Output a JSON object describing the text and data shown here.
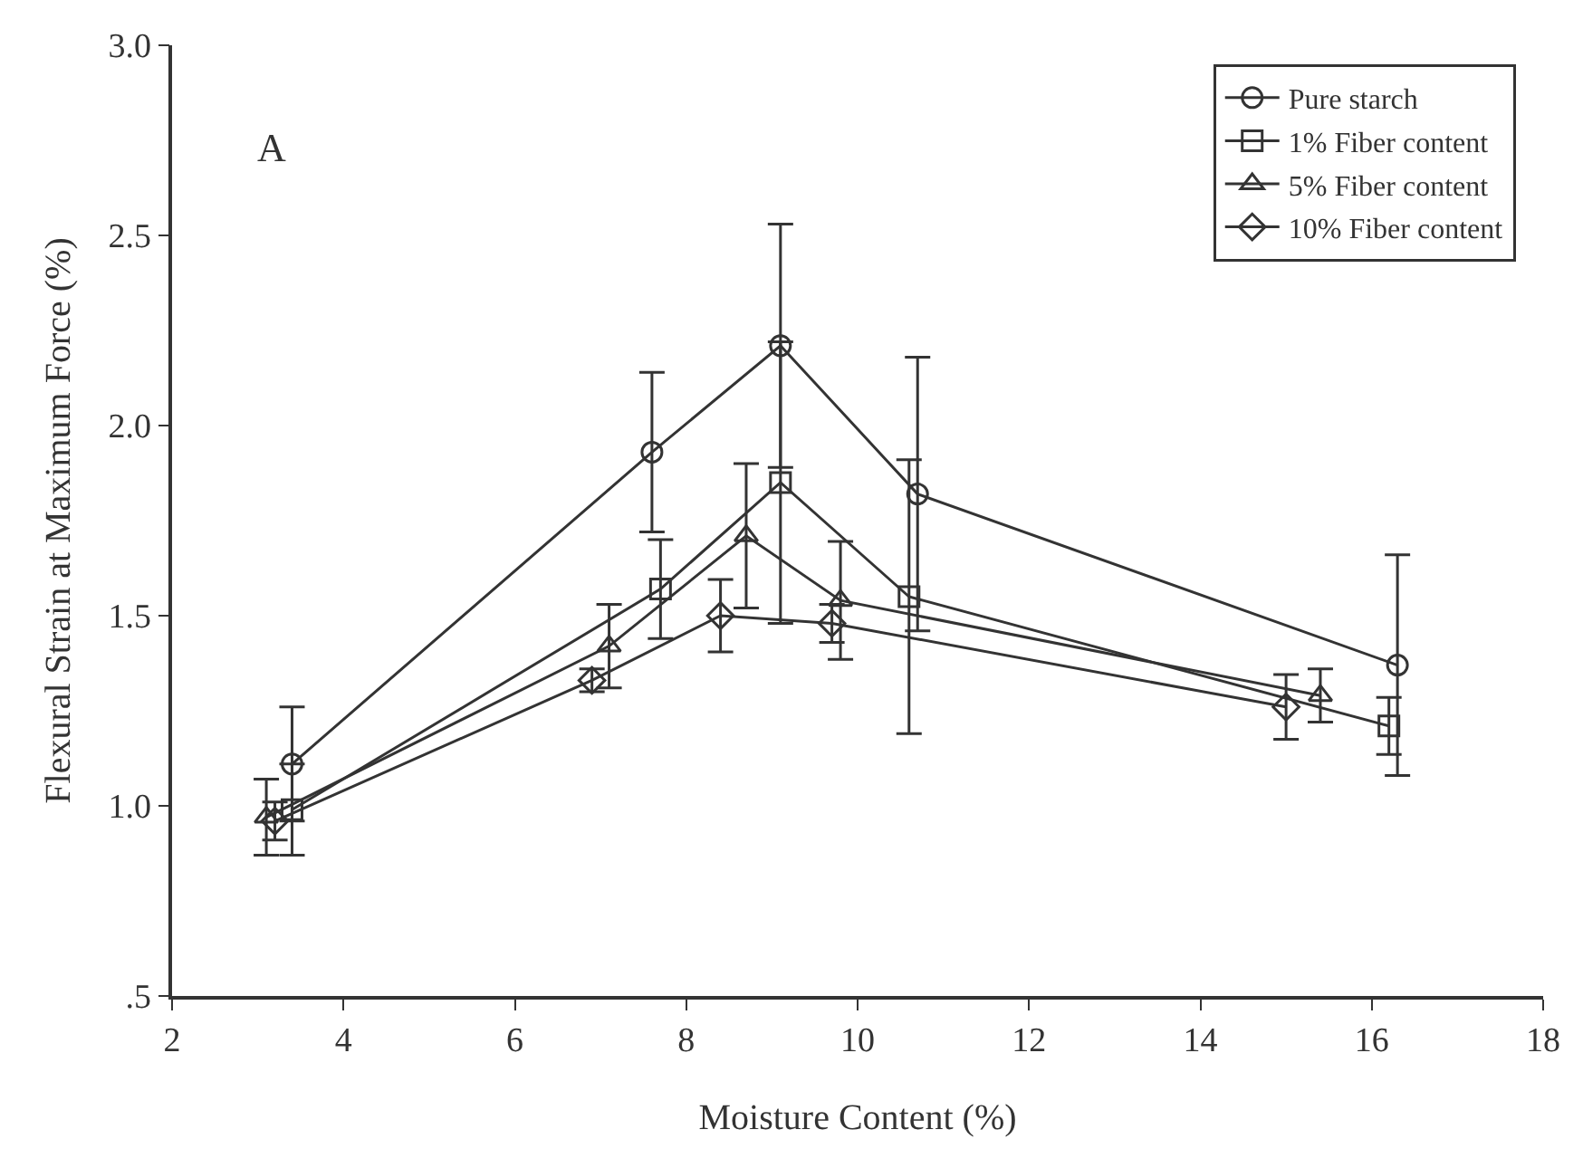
{
  "chart_data": {
    "type": "line",
    "xlabel": "Moisture Content (%)",
    "ylabel": "Flexural Strain at Maximum Force (%)",
    "annotations": [
      "A"
    ],
    "xlim": [
      2,
      18
    ],
    "xticks": [
      2,
      4,
      6,
      8,
      10,
      12,
      14,
      16,
      18
    ],
    "ylim": [
      0.5,
      3.0
    ],
    "yticks": [
      {
        "value": 0.5,
        "label": ".5"
      },
      {
        "value": 1.0,
        "label": "1.0"
      },
      {
        "value": 1.5,
        "label": "1.5"
      },
      {
        "value": 2.0,
        "label": "2.0"
      },
      {
        "value": 2.5,
        "label": "2.5"
      },
      {
        "value": 3.0,
        "label": "3.0"
      }
    ],
    "legend": "top right",
    "line_style": "solid",
    "series": [
      {
        "name": "Pure starch",
        "color": "#333333",
        "marker": "circle",
        "x": [
          3.4,
          7.6,
          9.1,
          10.7,
          16.3
        ],
        "values": [
          1.11,
          1.93,
          2.21,
          1.82,
          1.37
        ],
        "errors": [
          0.15,
          0.21,
          0.32,
          0.36,
          0.29
        ]
      },
      {
        "name": "1% Fiber content",
        "color": "#333333",
        "marker": "square",
        "x": [
          3.4,
          7.7,
          9.1,
          10.6,
          16.2
        ],
        "values": [
          0.99,
          1.57,
          1.85,
          1.55,
          1.21
        ],
        "errors": [
          0.12,
          0.13,
          0.37,
          0.36,
          0.075
        ]
      },
      {
        "name": "5% Fiber content",
        "color": "#333333",
        "marker": "triangle",
        "x": [
          3.1,
          7.1,
          8.7,
          9.8,
          15.4
        ],
        "values": [
          0.97,
          1.42,
          1.71,
          1.54,
          1.29
        ],
        "errors": [
          0.1,
          0.11,
          0.19,
          0.155,
          0.07
        ]
      },
      {
        "name": "10% Fiber content",
        "color": "#333333",
        "marker": "diamond",
        "x": [
          3.2,
          6.9,
          8.4,
          9.7,
          15.0
        ],
        "values": [
          0.96,
          1.33,
          1.5,
          1.48,
          1.26
        ],
        "errors": [
          0.05,
          0.03,
          0.095,
          0.05,
          0.085
        ]
      }
    ]
  }
}
